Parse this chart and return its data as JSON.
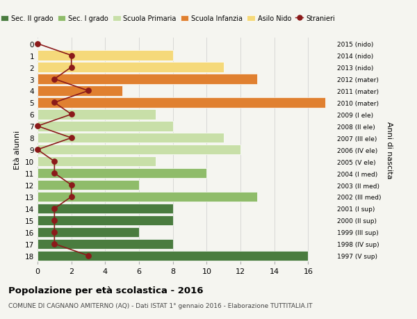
{
  "ages": [
    0,
    1,
    2,
    3,
    4,
    5,
    6,
    7,
    8,
    9,
    10,
    11,
    12,
    13,
    14,
    15,
    16,
    17,
    18
  ],
  "right_labels": [
    "2015 (nido)",
    "2014 (nido)",
    "2013 (nido)",
    "2012 (mater)",
    "2011 (mater)",
    "2010 (mater)",
    "2009 (I ele)",
    "2008 (II ele)",
    "2007 (III ele)",
    "2006 (IV ele)",
    "2005 (V ele)",
    "2004 (I med)",
    "2003 (II med)",
    "2002 (III med)",
    "2001 (I sup)",
    "2000 (II sup)",
    "1999 (III sup)",
    "1998 (IV sup)",
    "1997 (V sup)"
  ],
  "bar_values": [
    0,
    8,
    11,
    13,
    5,
    17,
    7,
    8,
    11,
    12,
    7,
    10,
    6,
    13,
    8,
    8,
    6,
    8,
    16
  ],
  "bar_colors": [
    "#f5d97a",
    "#f5d97a",
    "#f5d97a",
    "#e08030",
    "#e08030",
    "#e08030",
    "#c8dfa8",
    "#c8dfa8",
    "#c8dfa8",
    "#c8dfa8",
    "#c8dfa8",
    "#8fbc6a",
    "#8fbc6a",
    "#8fbc6a",
    "#4a7c3f",
    "#4a7c3f",
    "#4a7c3f",
    "#4a7c3f",
    "#4a7c3f"
  ],
  "stranieri_values": [
    0,
    2,
    2,
    1,
    3,
    1,
    2,
    0,
    2,
    0,
    1,
    1,
    2,
    2,
    1,
    1,
    1,
    1,
    3
  ],
  "stranieri_color": "#8b1a1a",
  "ylabel_left": "Età alunni",
  "ylabel_right": "Anni di nascita",
  "title_main": "Popolazione per età scolastica - 2016",
  "title_sub": "COMUNE DI CAGNANO AMITERNO (AQ) - Dati ISTAT 1° gennaio 2016 - Elaborazione TUTTITALIA.IT",
  "legend_labels": [
    "Sec. II grado",
    "Sec. I grado",
    "Scuola Primaria",
    "Scuola Infanzia",
    "Asilo Nido",
    "Stranieri"
  ],
  "legend_colors": [
    "#4a7c3f",
    "#8fbc6a",
    "#c8dfa8",
    "#e08030",
    "#f5d97a",
    "#8b1a1a"
  ],
  "bg_color": "#f5f5f0",
  "grid_color": "#cccccc",
  "xticks": [
    0,
    2,
    4,
    6,
    8,
    10,
    12,
    14,
    16
  ],
  "xlim": [
    0,
    17.5
  ],
  "ylim_bottom": -0.5,
  "ylim_top": 18.5
}
